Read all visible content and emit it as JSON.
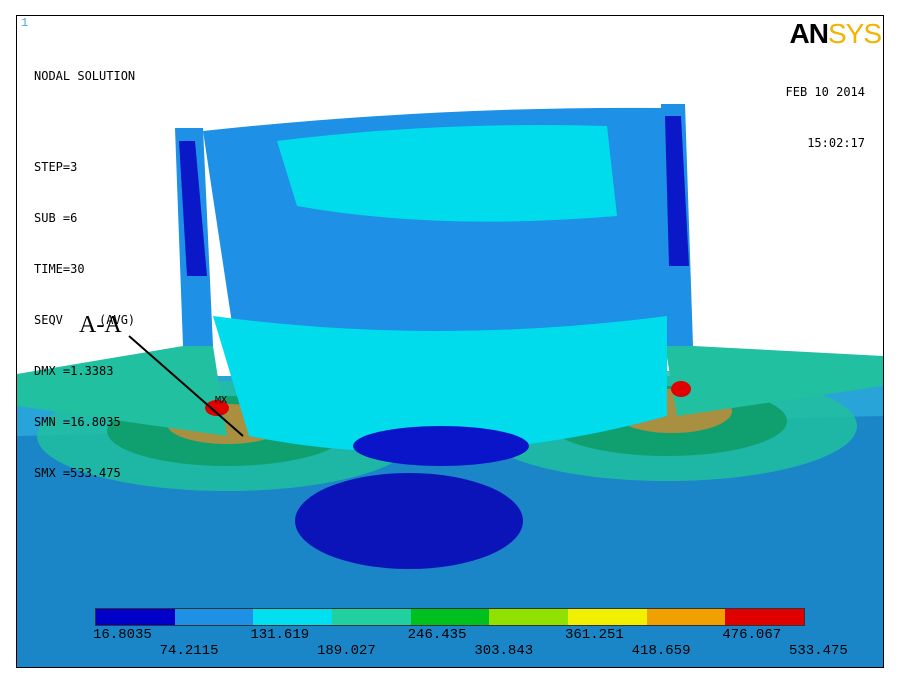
{
  "window": {
    "number": "1"
  },
  "logo": {
    "part1": "AN",
    "part2": "SYS"
  },
  "status": {
    "title": "NODAL SOLUTION",
    "lines": [
      "STEP=3",
      "SUB =6",
      "TIME=30",
      "SEQV     (AVG)",
      "DMX =1.3383",
      "SMN =16.8035",
      "SMX =533.475"
    ]
  },
  "timestamp": {
    "date": "FEB 10 2014",
    "time": "15:02:17"
  },
  "annotations": {
    "section": "A-A",
    "max_marker": "MX"
  },
  "legend": {
    "colors": [
      "#0000c8",
      "#1e90e6",
      "#00e0f0",
      "#20d0a0",
      "#00c020",
      "#90e000",
      "#f0f000",
      "#f0a000",
      "#e00000"
    ],
    "top_labels": [
      "16.8035",
      "131.619",
      "246.435",
      "361.251",
      "476.067"
    ],
    "bottom_labels": [
      "74.2115",
      "189.027",
      "303.843",
      "418.659",
      "533.475"
    ]
  }
}
